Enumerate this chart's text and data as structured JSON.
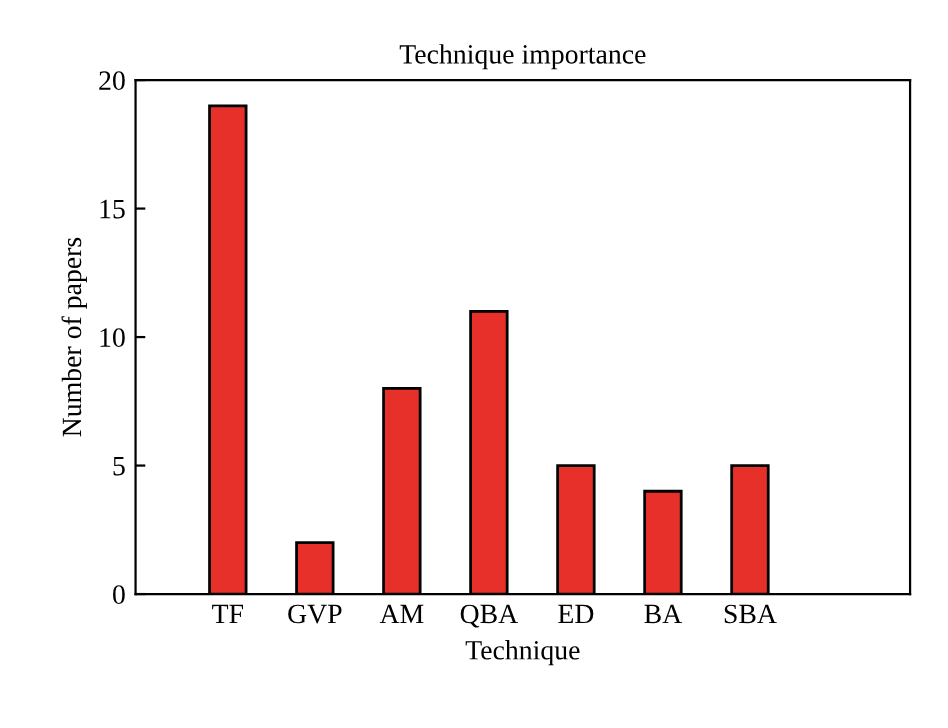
{
  "chart_data": {
    "type": "bar",
    "title": "Technique importance",
    "xlabel": "Technique",
    "ylabel": "Number of papers",
    "categories": [
      "TF",
      "GVP",
      "AM",
      "QBA",
      "ED",
      "BA",
      "SBA"
    ],
    "values": [
      19,
      2,
      8,
      11,
      5,
      4,
      5
    ],
    "color": "#e8302a",
    "ylim": [
      0,
      20
    ],
    "yticks": [
      0,
      5,
      10,
      15,
      20
    ],
    "grid": false
  }
}
